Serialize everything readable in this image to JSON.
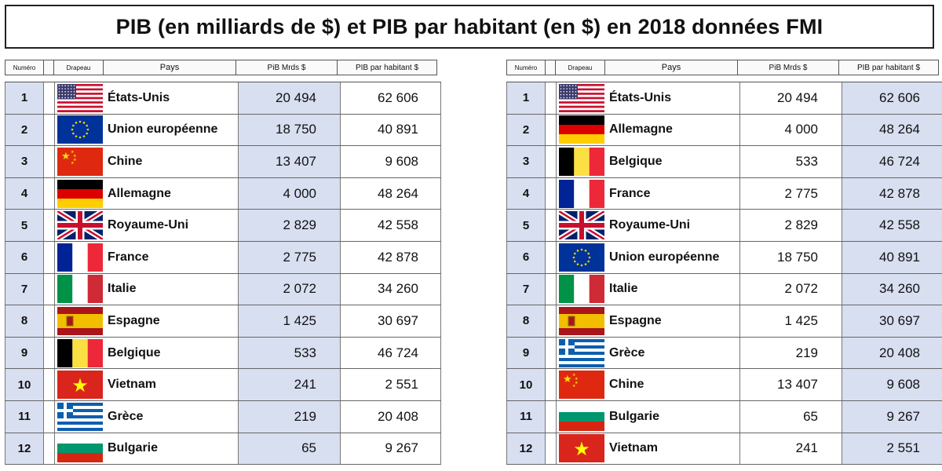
{
  "title": "PIB (en milliards de $) et PIB par habitant (en $) en 2018 données FMI",
  "headers": {
    "num": "Numéro",
    "flag": "Drapeau",
    "country": "Pays",
    "pib": "PiB Mrds $",
    "hab": "PIB par habitant $"
  },
  "tables": [
    {
      "rows": [
        {
          "num": "1",
          "flag": "usa-flag-icon",
          "country": "États-Unis",
          "pib": "20 494",
          "hab": "62 606"
        },
        {
          "num": "2",
          "flag": "eu-flag-icon",
          "country": "Union européenne",
          "pib": "18 750",
          "hab": "40 891"
        },
        {
          "num": "3",
          "flag": "china-flag-icon",
          "country": "Chine",
          "pib": "13 407",
          "hab": "9 608"
        },
        {
          "num": "4",
          "flag": "germany-flag-icon",
          "country": "Allemagne",
          "pib": "4 000",
          "hab": "48 264"
        },
        {
          "num": "5",
          "flag": "uk-flag-icon",
          "country": "Royaume-Uni",
          "pib": "2 829",
          "hab": "42 558"
        },
        {
          "num": "6",
          "flag": "france-flag-icon",
          "country": "France",
          "pib": "2 775",
          "hab": "42 878"
        },
        {
          "num": "7",
          "flag": "italy-flag-icon",
          "country": "Italie",
          "pib": "2 072",
          "hab": "34 260"
        },
        {
          "num": "8",
          "flag": "spain-flag-icon",
          "country": "Espagne",
          "pib": "1 425",
          "hab": "30 697"
        },
        {
          "num": "9",
          "flag": "belgium-flag-icon",
          "country": "Belgique",
          "pib": "533",
          "hab": "46 724"
        },
        {
          "num": "10",
          "flag": "vietnam-flag-icon",
          "country": "Vietnam",
          "pib": "241",
          "hab": "2 551"
        },
        {
          "num": "11",
          "flag": "greece-flag-icon",
          "country": "Grèce",
          "pib": "219",
          "hab": "20 408"
        },
        {
          "num": "12",
          "flag": "bulgaria-flag-icon",
          "country": "Bulgarie",
          "pib": "65",
          "hab": "9 267"
        }
      ]
    },
    {
      "rows": [
        {
          "num": "1",
          "flag": "usa-flag-icon",
          "country": "États-Unis",
          "pib": "20 494",
          "hab": "62 606"
        },
        {
          "num": "2",
          "flag": "germany-flag-icon",
          "country": "Allemagne",
          "pib": "4 000",
          "hab": "48 264"
        },
        {
          "num": "3",
          "flag": "belgium-flag-icon",
          "country": "Belgique",
          "pib": "533",
          "hab": "46 724"
        },
        {
          "num": "4",
          "flag": "france-flag-icon",
          "country": "France",
          "pib": "2 775",
          "hab": "42 878"
        },
        {
          "num": "5",
          "flag": "uk-flag-icon",
          "country": "Royaume-Uni",
          "pib": "2 829",
          "hab": "42 558"
        },
        {
          "num": "6",
          "flag": "eu-flag-icon",
          "country": "Union européenne",
          "pib": "18 750",
          "hab": "40 891"
        },
        {
          "num": "7",
          "flag": "italy-flag-icon",
          "country": "Italie",
          "pib": "2 072",
          "hab": "34 260"
        },
        {
          "num": "8",
          "flag": "spain-flag-icon",
          "country": "Espagne",
          "pib": "1 425",
          "hab": "30 697"
        },
        {
          "num": "9",
          "flag": "greece-flag-icon",
          "country": "Grèce",
          "pib": "219",
          "hab": "20 408"
        },
        {
          "num": "10",
          "flag": "china-flag-icon",
          "country": "Chine",
          "pib": "13 407",
          "hab": "9 608"
        },
        {
          "num": "11",
          "flag": "bulgaria-flag-icon",
          "country": "Bulgarie",
          "pib": "65",
          "hab": "9 267"
        },
        {
          "num": "12",
          "flag": "vietnam-flag-icon",
          "country": "Vietnam",
          "pib": "241",
          "hab": "2 551"
        }
      ]
    }
  ]
}
